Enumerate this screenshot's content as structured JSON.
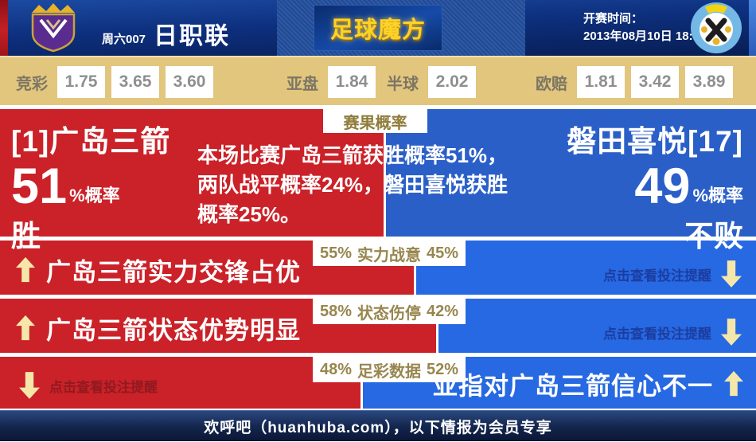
{
  "header": {
    "match_code": "周六007",
    "league_name": "日职联",
    "brand": "足球魔方",
    "kickoff_label": "开赛时间：",
    "kickoff_datetime": "2013年08月10日 18:00"
  },
  "odds": {
    "jingcai": {
      "label": "竞彩",
      "win": "1.75",
      "draw": "3.65",
      "lose": "3.60"
    },
    "yapan": {
      "label": "亚盘",
      "home": "1.84",
      "handicap": "半球",
      "away": "2.02"
    },
    "oupei": {
      "label": "欧赔",
      "win": "1.81",
      "draw": "3.42",
      "lose": "3.89"
    }
  },
  "hero": {
    "badge": "赛果概率",
    "home": {
      "name": "[1]广岛三箭",
      "percent": "51",
      "suffix": "%概率",
      "outcome": "胜",
      "width_pct": 51
    },
    "away": {
      "name": "磐田喜悦[17]",
      "percent": "49",
      "suffix": "%概率",
      "outcome": "不败"
    },
    "summary_lines": [
      "本场比赛广岛三箭获胜概率51%，",
      "两队战平概率24%，磐田喜悦获胜",
      "概率25%。"
    ]
  },
  "factors": [
    {
      "home_pct": "55%",
      "name": "实力战意",
      "away_pct": "45%",
      "home_width": 55,
      "left_headline": "广岛三箭实力交锋占优",
      "right_link": "点击查看投注提醒"
    },
    {
      "home_pct": "58%",
      "name": "状态伤停",
      "away_pct": "42%",
      "home_width": 58,
      "left_headline": "广岛三箭状态优势明显",
      "right_link": "点击查看投注提醒"
    },
    {
      "home_pct": "48%",
      "name": "足彩数据",
      "away_pct": "52%",
      "home_width": 48,
      "left_link": "点击查看投注提醒",
      "right_headline": "亚指对广岛三箭信心不一"
    }
  ],
  "footer": {
    "text": "欢呼吧（huanhuba.com），以下情报为会员专享"
  },
  "colors": {
    "home_red": "#cb2128",
    "away_blue": "#2669e2",
    "hero_blue": "#2b5fc8",
    "odds_bg": "#e2c67e",
    "gold_arrow": "#f5e7a9",
    "brand_gold": "#ffd226"
  }
}
